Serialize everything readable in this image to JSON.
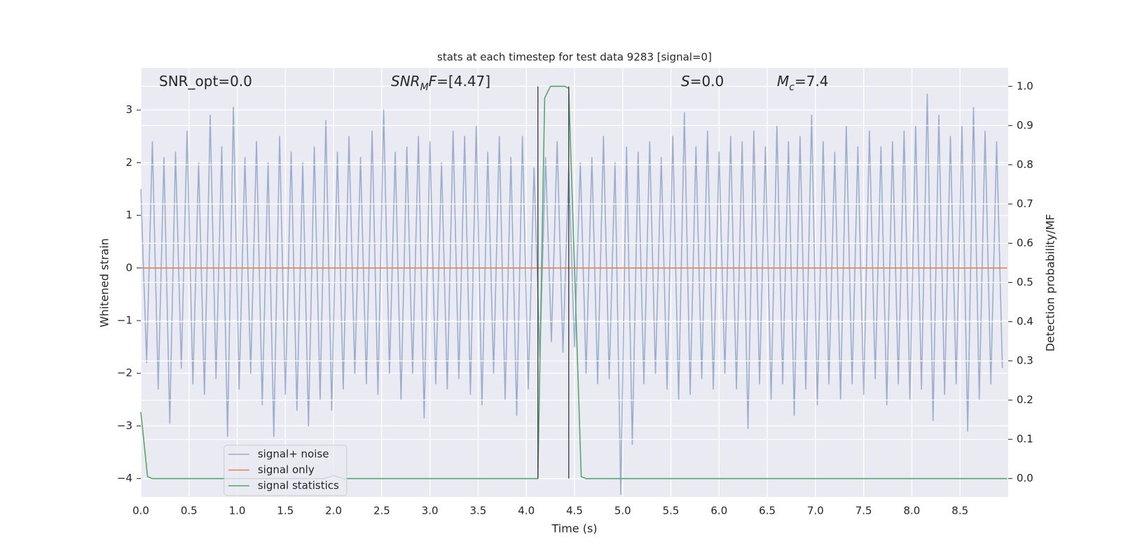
{
  "chart_data": {
    "type": "line",
    "title": "stats at each timestep for test data 9283 [signal=0]",
    "x_label": "Time (s)",
    "y_label": "Whitened strain",
    "y2_label": "Detection probability/MF",
    "xlim": [
      0,
      9.0
    ],
    "ylim": [
      -4.35,
      3.8
    ],
    "y2lim": [
      -0.047,
      1.047
    ],
    "xticks": [
      {
        "value": 0,
        "label": "0.0"
      },
      0.5,
      {
        "value": 1,
        "label": "1.0"
      },
      1.5,
      {
        "value": 2,
        "label": "2.0"
      },
      2.5,
      {
        "value": 3,
        "label": "3.0"
      },
      3.5,
      {
        "value": 4,
        "label": "4.0"
      },
      4.5,
      {
        "value": 5,
        "label": "5.0"
      },
      5.5,
      {
        "value": 6,
        "label": "6.0"
      },
      6.5,
      {
        "value": 7,
        "label": "7.0"
      },
      7.5,
      {
        "value": 8,
        "label": "8.0"
      },
      8.5
    ],
    "yticks": [
      {
        "value": -4,
        "label": "−4"
      },
      {
        "value": -3,
        "label": "−3"
      },
      {
        "value": -2,
        "label": "−2"
      },
      {
        "value": -1,
        "label": "−1"
      },
      0,
      1,
      2,
      3
    ],
    "y2ticks": [
      {
        "value": 0,
        "label": "0.0"
      },
      0.1,
      0.2,
      0.3,
      0.4,
      0.5,
      0.6,
      0.7,
      0.8,
      0.9,
      {
        "value": 1,
        "label": "1.0"
      }
    ],
    "grid": true,
    "legend": "lower left",
    "series": [
      {
        "name": "signal+ noise",
        "color": "#4c72b0",
        "alpha": 0.5,
        "x": [
          0,
          0.06,
          0.12,
          0.18,
          0.24,
          0.3,
          0.36,
          0.42,
          0.48,
          0.54,
          0.6,
          0.66,
          0.72,
          0.78,
          0.84,
          0.9,
          0.96,
          1.02,
          1.08,
          1.14,
          1.2,
          1.26,
          1.32,
          1.38,
          1.44,
          1.5,
          1.56,
          1.62,
          1.68,
          1.74,
          1.8,
          1.86,
          1.92,
          1.98,
          2.04,
          2.1,
          2.16,
          2.22,
          2.28,
          2.34,
          2.4,
          2.46,
          2.52,
          2.58,
          2.64,
          2.7,
          2.76,
          2.82,
          2.88,
          2.94,
          3,
          3.06,
          3.12,
          3.18,
          3.24,
          3.3,
          3.36,
          3.42,
          3.48,
          3.54,
          3.6,
          3.66,
          3.72,
          3.78,
          3.84,
          3.9,
          3.96,
          4.02,
          4.08,
          4.14,
          4.2,
          4.26,
          4.32,
          4.38,
          4.44,
          4.5,
          4.56,
          4.62,
          4.68,
          4.74,
          4.8,
          4.86,
          4.92,
          4.98,
          5.04,
          5.1,
          5.16,
          5.22,
          5.28,
          5.34,
          5.4,
          5.46,
          5.52,
          5.58,
          5.64,
          5.7,
          5.76,
          5.82,
          5.88,
          5.94,
          6,
          6.06,
          6.12,
          6.18,
          6.24,
          6.3,
          6.36,
          6.42,
          6.48,
          6.54,
          6.6,
          6.66,
          6.72,
          6.78,
          6.84,
          6.9,
          6.96,
          7.02,
          7.08,
          7.14,
          7.2,
          7.26,
          7.32,
          7.38,
          7.44,
          7.5,
          7.56,
          7.62,
          7.68,
          7.74,
          7.8,
          7.86,
          7.92,
          7.98,
          8.04,
          8.1,
          8.16,
          8.22,
          8.28,
          8.34,
          8.4,
          8.46,
          8.52,
          8.58,
          8.64,
          8.7,
          8.76,
          8.82,
          8.88,
          8.94
        ],
        "values": [
          1.5,
          -1.8,
          2.4,
          -2.3,
          2.1,
          -2.95,
          2.2,
          -1.9,
          2.6,
          -2.2,
          2.0,
          -2.4,
          2.9,
          -2.1,
          2.3,
          -3.2,
          3.05,
          -2.3,
          2.1,
          -2.0,
          2.4,
          -2.6,
          2.0,
          -3.2,
          2.5,
          -2.4,
          2.2,
          -2.7,
          2.0,
          -3.0,
          2.3,
          -2.5,
          2.8,
          -2.7,
          2.2,
          -2.3,
          2.5,
          -2.0,
          2.1,
          -2.2,
          2.6,
          -2.4,
          3.0,
          -2.0,
          2.2,
          -2.5,
          2.3,
          -2.0,
          2.5,
          -2.85,
          2.4,
          -2.2,
          2.0,
          -2.3,
          2.6,
          -2.1,
          2.5,
          -2.4,
          2.7,
          -2.6,
          2.2,
          -2.0,
          2.5,
          -2.5,
          2.1,
          -2.8,
          2.5,
          -2.3,
          1.9,
          -1.7,
          2.1,
          -1.4,
          2.4,
          -1.6,
          1.9,
          -1.5,
          2.0,
          -2.0,
          2.1,
          -2.2,
          2.5,
          -2.1,
          2.0,
          -4.3,
          2.3,
          -3.35,
          2.2,
          -2.2,
          2.4,
          -2.0,
          2.1,
          -2.3,
          2.5,
          -2.5,
          2.95,
          -2.4,
          2.3,
          -2.1,
          2.6,
          -2.3,
          2.2,
          -2.0,
          2.5,
          -2.3,
          2.4,
          -3.05,
          2.6,
          -2.2,
          2.3,
          -2.5,
          2.7,
          -2.2,
          2.4,
          -2.8,
          2.5,
          -2.3,
          2.9,
          -2.6,
          2.4,
          -2.2,
          2.2,
          -2.5,
          2.7,
          -2.2,
          2.3,
          -2.4,
          2.6,
          -2.1,
          2.3,
          -2.6,
          2.4,
          -2.2,
          2.6,
          -2.5,
          2.7,
          -2.3,
          3.3,
          -2.9,
          2.9,
          -2.4,
          2.5,
          -2.2,
          2.7,
          -3.1,
          3.05,
          -2.5,
          2.6,
          -2.2,
          2.4,
          -1.9
        ]
      },
      {
        "name": "signal only",
        "color": "#dd8452",
        "x": [
          0,
          8.99
        ],
        "values": [
          0,
          0
        ]
      },
      {
        "name": "signal statistics",
        "color": "#55a868",
        "axis": "y2",
        "x": [
          0,
          0.07,
          0.12,
          1.9,
          2.0,
          2.1,
          4.12,
          4.19,
          4.25,
          4.4,
          4.44,
          4.57,
          4.62,
          8.99
        ],
        "values": [
          0.17,
          0.005,
          0,
          0,
          0.008,
          0,
          0,
          0.97,
          1.0,
          1.0,
          0.995,
          0.005,
          0,
          0
        ]
      }
    ],
    "vlines": {
      "x": [
        4.12,
        4.44
      ],
      "y2_from": 0,
      "y2_to": 1.0,
      "color": "#444444"
    },
    "annotations": [
      {
        "parts": [
          {
            "text": "SNR_opt=0.0",
            "style": "normal"
          }
        ]
      },
      {
        "parts": [
          {
            "text": "SNR",
            "style": "italic"
          },
          {
            "text": "M",
            "style": "sub"
          },
          {
            "text": "F",
            "style": "italic"
          },
          {
            "text": "=[4.47]",
            "style": "normal"
          }
        ]
      },
      {
        "parts": [
          {
            "text": "S",
            "style": "italic"
          },
          {
            "text": "=0.0",
            "style": "normal"
          }
        ]
      },
      {
        "parts": [
          {
            "text": "M",
            "style": "italic"
          },
          {
            "text": "c",
            "style": "sub"
          },
          {
            "text": "=7.4",
            "style": "normal"
          }
        ]
      }
    ]
  }
}
